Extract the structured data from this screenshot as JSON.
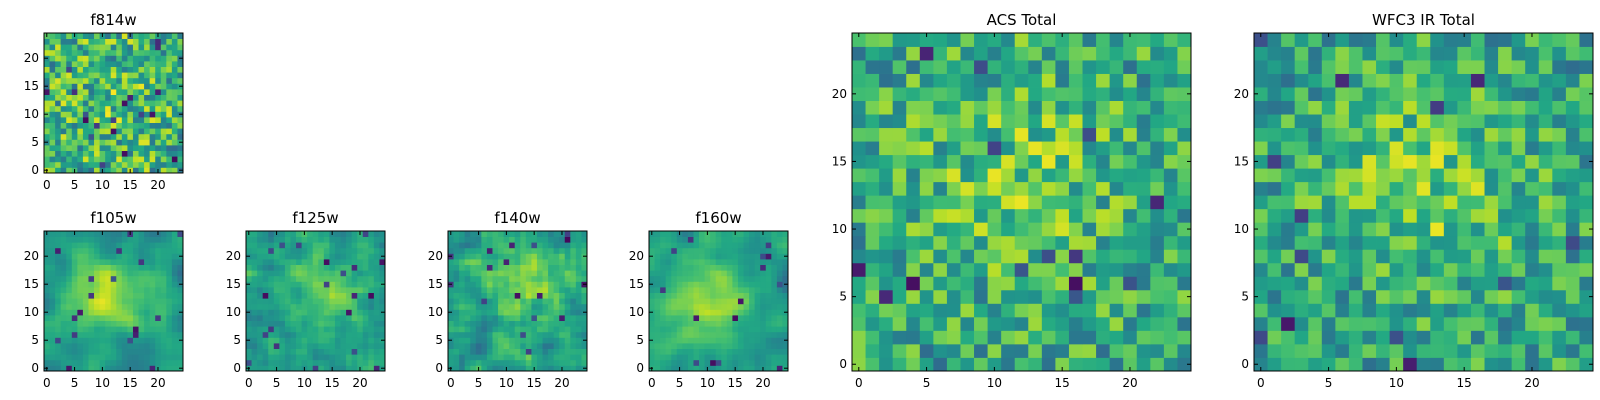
{
  "figure": {
    "description_panels": 7
  },
  "chart_data": [
    {
      "type": "heatmap",
      "id": "f814w",
      "title": "f814w",
      "grid": [
        25,
        25
      ],
      "colormap": "viridis",
      "xticks": [
        "0",
        "5",
        "10",
        "15",
        "20"
      ],
      "yticks": [
        "0",
        "5",
        "10",
        "15",
        "20"
      ],
      "xlim": [
        0,
        25
      ],
      "ylim": [
        0,
        25
      ],
      "texture": "noise",
      "seed": 11,
      "peak_strength": 0.1,
      "peak_center": [
        12,
        12
      ]
    },
    {
      "type": "heatmap",
      "id": "f105w",
      "title": "f105w",
      "grid": [
        25,
        25
      ],
      "colormap": "viridis",
      "xticks": [
        "0",
        "5",
        "10",
        "15",
        "20"
      ],
      "yticks": [
        "0",
        "5",
        "10",
        "15",
        "20"
      ],
      "xlim": [
        0,
        25
      ],
      "ylim": [
        0,
        25
      ],
      "texture": "smooth-peak",
      "seed": 23,
      "peak_strength": 0.55,
      "peak_center": [
        11,
        13
      ]
    },
    {
      "type": "heatmap",
      "id": "f125w",
      "title": "f125w",
      "grid": [
        25,
        25
      ],
      "colormap": "viridis",
      "xticks": [
        "0",
        "5",
        "10",
        "15",
        "20"
      ],
      "yticks": [
        "0",
        "5",
        "10",
        "15",
        "20"
      ],
      "xlim": [
        0,
        25
      ],
      "ylim": [
        0,
        25
      ],
      "texture": "blotchy",
      "seed": 37,
      "peak_strength": 0.4,
      "peak_center": [
        13,
        14
      ]
    },
    {
      "type": "heatmap",
      "id": "f140w",
      "title": "f140w",
      "grid": [
        25,
        25
      ],
      "colormap": "viridis",
      "xticks": [
        "0",
        "5",
        "10",
        "15",
        "20"
      ],
      "yticks": [
        "0",
        "5",
        "10",
        "15",
        "20"
      ],
      "xlim": [
        0,
        25
      ],
      "ylim": [
        0,
        25
      ],
      "texture": "blotchy",
      "seed": 41,
      "peak_strength": 0.35,
      "peak_center": [
        13,
        15
      ]
    },
    {
      "type": "heatmap",
      "id": "f160w",
      "title": "f160w",
      "grid": [
        25,
        25
      ],
      "colormap": "viridis",
      "xticks": [
        "0",
        "5",
        "10",
        "15",
        "20"
      ],
      "yticks": [
        "0",
        "5",
        "10",
        "15",
        "20"
      ],
      "xlim": [
        0,
        25
      ],
      "ylim": [
        0,
        25
      ],
      "texture": "smooth-peak",
      "seed": 59,
      "peak_strength": 0.5,
      "peak_center": [
        11,
        12
      ]
    },
    {
      "type": "heatmap",
      "id": "acs_total",
      "title": "ACS Total",
      "grid": [
        25,
        25
      ],
      "colormap": "viridis",
      "xticks": [
        "0",
        "5",
        "10",
        "15",
        "20"
      ],
      "yticks": [
        "0",
        "5",
        "10",
        "15",
        "20"
      ],
      "xlim": [
        0,
        25
      ],
      "ylim": [
        0,
        25
      ],
      "texture": "noise",
      "seed": 73,
      "peak_strength": 0.25,
      "peak_center": [
        12,
        14
      ]
    },
    {
      "type": "heatmap",
      "id": "wfc3_ir_total",
      "title": "WFC3 IR Total",
      "grid": [
        25,
        25
      ],
      "colormap": "viridis",
      "xticks": [
        "0",
        "5",
        "10",
        "15",
        "20"
      ],
      "yticks": [
        "0",
        "5",
        "10",
        "15",
        "20"
      ],
      "xlim": [
        0,
        25
      ],
      "ylim": [
        0,
        25
      ],
      "texture": "noise",
      "seed": 89,
      "peak_strength": 0.3,
      "peak_center": [
        12,
        13
      ]
    }
  ]
}
